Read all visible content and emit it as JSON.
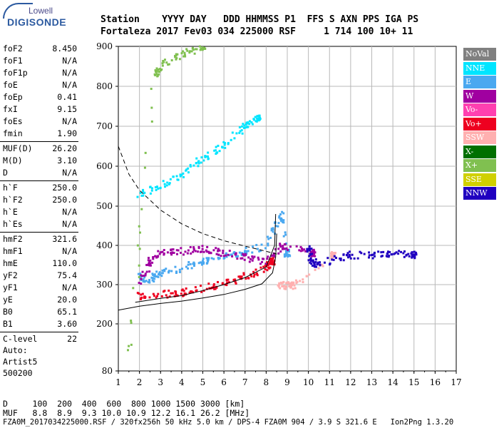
{
  "logo": {
    "top": "Lowell",
    "bottom": "DIGISONDE"
  },
  "header": {
    "line1": "Station    YYYY DAY   DDD HHMMSS P1  FFS S AXN PPS IGA PS",
    "line2": "Fortaleza 2017 Fev03 034 225000 RSF     1 714 100 10+ 11"
  },
  "params": [
    {
      "label": "foF2",
      "value": "8.450"
    },
    {
      "label": "foF1",
      "value": "N/A"
    },
    {
      "label": "foF1p",
      "value": "N/A"
    },
    {
      "label": "foE",
      "value": "N/A"
    },
    {
      "label": "foEp",
      "value": "0.41"
    },
    {
      "label": "fxI",
      "value": "9.15"
    },
    {
      "label": "foEs",
      "value": "N/A"
    },
    {
      "label": "fmin",
      "value": "1.90"
    },
    {
      "label": "MUF(D)",
      "value": "26.20"
    },
    {
      "label": "M(D)",
      "value": "3.10"
    },
    {
      "label": "D",
      "value": "N/A"
    },
    {
      "label": "h`F",
      "value": "250.0"
    },
    {
      "label": "h`F2",
      "value": "250.0"
    },
    {
      "label": "h`E",
      "value": "N/A"
    },
    {
      "label": "h`Es",
      "value": "N/A"
    },
    {
      "label": "hmF2",
      "value": "321.6"
    },
    {
      "label": "hmF1",
      "value": "N/A"
    },
    {
      "label": "hmE",
      "value": "110.0"
    },
    {
      "label": "yF2",
      "value": "75.4"
    },
    {
      "label": "yF1",
      "value": "N/A"
    },
    {
      "label": "yE",
      "value": "20.0"
    },
    {
      "label": "B0",
      "value": "65.1"
    },
    {
      "label": "B1",
      "value": "3.60"
    },
    {
      "label": "C-level",
      "value": "22"
    }
  ],
  "auto": {
    "line1": "Auto:",
    "line2": "Artist5",
    "line3": "500200"
  },
  "legend": [
    {
      "label": "NoVal",
      "color": "#808080",
      "text": "#ffffff"
    },
    {
      "label": "NNE",
      "color": "#00e5ff",
      "text": "#ffffff"
    },
    {
      "label": "E",
      "color": "#4aa8f0",
      "text": "#ffffff"
    },
    {
      "label": "W",
      "color": "#a000a0",
      "text": "#ffffff"
    },
    {
      "label": "Vo-",
      "color": "#ff40b0",
      "text": "#ffffff"
    },
    {
      "label": "Vo+",
      "color": "#ee0020",
      "text": "#ffffff"
    },
    {
      "label": "SSW",
      "color": "#ffb0b0",
      "text": "#ffffff"
    },
    {
      "label": "X-",
      "color": "#007000",
      "text": "#ffffff"
    },
    {
      "label": "X+",
      "color": "#80c050",
      "text": "#ffffff"
    },
    {
      "label": "SSE",
      "color": "#d0d000",
      "text": "#ffffff"
    },
    {
      "label": "NNW",
      "color": "#2000c0",
      "text": "#ffffff"
    }
  ],
  "footer": {
    "line1": "D     100  200  400  600  800 1000 1500 3000 [km]",
    "line2": "MUF   8.8  8.9  9.3 10.0 10.9 12.2 16.1 26.2 [MHz]",
    "line3": "FZA0M_2017034225000.RSF / 320fx256h 50 kHz 5.0 km / DPS-4 FZA0M 904 / 3.9 S 321.6 E   Ion2Png 1.3.20"
  },
  "chart_data": {
    "type": "scatter",
    "title": "",
    "xlabel": "",
    "ylabel": "",
    "xlim": [
      1,
      17
    ],
    "ylim": [
      80,
      900
    ],
    "x_ticks": [
      "1",
      "2",
      "3",
      "4",
      "5",
      "6",
      "7",
      "8",
      "9",
      "10",
      "11",
      "12",
      "13",
      "14",
      "15",
      "16",
      "17"
    ],
    "y_ticks": [
      "80",
      "200",
      "300",
      "400",
      "500",
      "600",
      "700",
      "800",
      "900"
    ],
    "grid": true,
    "series": [
      {
        "name": "E",
        "values": [
          [
            1.9,
            320
          ],
          [
            2.5,
            310
          ],
          [
            3,
            330
          ],
          [
            4,
            340
          ],
          [
            5,
            360
          ],
          [
            6,
            370
          ],
          [
            7,
            385
          ],
          [
            8,
            400
          ],
          [
            8.7,
            480
          ],
          [
            9,
            380
          ]
        ]
      },
      {
        "name": "W",
        "values": [
          [
            2,
            300
          ],
          [
            2.5,
            360
          ],
          [
            3,
            380
          ],
          [
            4,
            385
          ],
          [
            5,
            390
          ],
          [
            6,
            380
          ],
          [
            7,
            370
          ],
          [
            8,
            360
          ],
          [
            8.8,
            400
          ],
          [
            10.2,
            380
          ]
        ]
      },
      {
        "name": "Vo+",
        "values": [
          [
            2,
            270
          ],
          [
            3,
            275
          ],
          [
            4,
            280
          ],
          [
            5,
            290
          ],
          [
            6,
            300
          ],
          [
            7,
            320
          ],
          [
            8,
            340
          ],
          [
            8.3,
            360
          ]
        ]
      },
      {
        "name": "SSW",
        "values": [
          [
            8.6,
            295
          ],
          [
            9,
            300
          ],
          [
            9.3,
            295
          ],
          [
            11.2,
            375
          ]
        ]
      },
      {
        "name": "NNW",
        "values": [
          [
            10,
            390
          ],
          [
            10.2,
            360
          ],
          [
            10.4,
            350
          ],
          [
            11.8,
            375
          ],
          [
            13,
            375
          ],
          [
            14,
            380
          ],
          [
            15,
            375
          ]
        ]
      },
      {
        "name": "NNE",
        "values": [
          [
            2,
            530
          ],
          [
            3,
            550
          ],
          [
            4,
            580
          ],
          [
            5,
            620
          ],
          [
            6,
            650
          ],
          [
            7,
            700
          ],
          [
            7.6,
            720
          ]
        ]
      },
      {
        "name": "X+",
        "values": [
          [
            1.5,
            100
          ],
          [
            2.7,
            820
          ],
          [
            3,
            850
          ],
          [
            4,
            880
          ],
          [
            5,
            900
          ]
        ]
      }
    ]
  }
}
